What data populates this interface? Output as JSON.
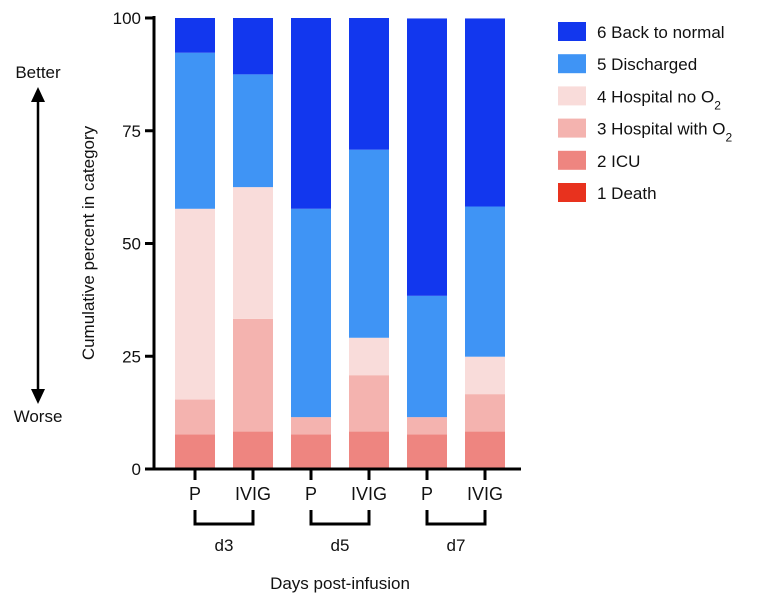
{
  "chart_data": {
    "type": "bar",
    "stacked": true,
    "ylabel": "Cumulative percent in category",
    "xlabel": "Days post-infusion",
    "ylim": [
      0,
      100
    ],
    "yticks": [
      0,
      25,
      50,
      75,
      100
    ],
    "categories": [
      "P",
      "IVIG",
      "P",
      "IVIG",
      "P",
      "IVIG"
    ],
    "groups": [
      {
        "label": "d3",
        "members": [
          0,
          1
        ]
      },
      {
        "label": "d5",
        "members": [
          2,
          3
        ]
      },
      {
        "label": "d7",
        "members": [
          4,
          5
        ]
      }
    ],
    "series": [
      {
        "name": "1 Death",
        "color": "#E8321E",
        "values": [
          0,
          0,
          0,
          0,
          0,
          0
        ]
      },
      {
        "name": "2 ICU",
        "color": "#EE8580",
        "values": [
          7.7,
          8.3,
          7.7,
          8.3,
          7.7,
          8.3
        ]
      },
      {
        "name": "3 Hospital with O",
        "sub": "2",
        "color": "#F4B3AF",
        "values": [
          7.7,
          25.0,
          3.8,
          12.5,
          3.8,
          8.3
        ]
      },
      {
        "name": "4 Hospital no O",
        "sub": "2",
        "color": "#F9DCDA",
        "values": [
          42.3,
          29.2,
          0,
          8.3,
          0,
          8.3
        ]
      },
      {
        "name": "5 Discharged",
        "color": "#3F94F5",
        "values": [
          34.6,
          25.0,
          46.2,
          41.7,
          26.9,
          33.3
        ]
      },
      {
        "name": "6 Back to normal",
        "color": "#1237EE",
        "values": [
          7.7,
          12.5,
          42.3,
          29.2,
          61.5,
          41.7
        ]
      }
    ],
    "legend_placement": "top-right",
    "grid": false
  },
  "side_labels": {
    "top": "Better",
    "bottom": "Worse"
  }
}
